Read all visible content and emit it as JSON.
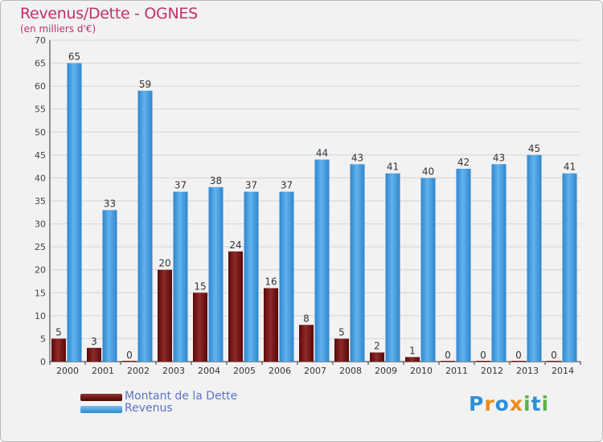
{
  "header": {
    "title": "Revenus/Dette - OGNES",
    "subtitle": "(en milliers d'€)"
  },
  "legend": {
    "items": [
      {
        "label": "Montant de la Dette",
        "color": "#7a1010"
      },
      {
        "label": "Revenus",
        "color": "#4a9ee0"
      }
    ]
  },
  "logo": {
    "text": "Proxiti",
    "letters": [
      {
        "ch": "P",
        "color": "#2e8fd6"
      },
      {
        "ch": "r",
        "color": "#f08a1c"
      },
      {
        "ch": "o",
        "color": "#2e8fd6"
      },
      {
        "ch": "x",
        "color": "#f08a1c"
      },
      {
        "ch": "i",
        "color": "#5bb347"
      },
      {
        "ch": "t",
        "color": "#2e8fd6"
      },
      {
        "ch": "i",
        "color": "#5bb347"
      }
    ]
  },
  "chart_data": {
    "type": "bar",
    "title": "Revenus/Dette - OGNES",
    "subtitle": "(en milliers d'€)",
    "xlabel": "",
    "ylabel": "",
    "categories": [
      "2000",
      "2001",
      "2002",
      "2003",
      "2004",
      "2005",
      "2006",
      "2007",
      "2008",
      "2009",
      "2010",
      "2011",
      "2012",
      "2013",
      "2014"
    ],
    "series": [
      {
        "name": "Montant de la Dette",
        "color": "#7a1010",
        "values": [
          5,
          3,
          0,
          20,
          15,
          24,
          16,
          8,
          5,
          2,
          1,
          0,
          0,
          0,
          0
        ]
      },
      {
        "name": "Revenus",
        "color": "#4a9ee0",
        "values": [
          65,
          33,
          59,
          37,
          38,
          37,
          37,
          44,
          43,
          41,
          40,
          42,
          43,
          45,
          41
        ]
      }
    ],
    "ylim": [
      0,
      70
    ],
    "yticks": [
      0,
      5,
      10,
      15,
      20,
      25,
      30,
      35,
      40,
      45,
      50,
      55,
      60,
      65,
      70
    ],
    "grid": true,
    "legend_position": "bottom-left"
  }
}
